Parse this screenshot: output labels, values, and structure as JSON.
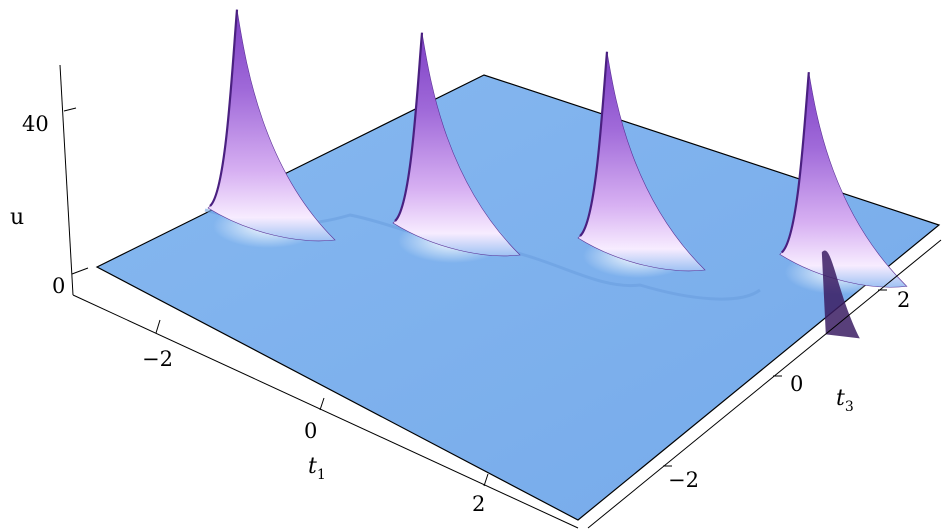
{
  "chart_data": {
    "type": "surface",
    "description_source": "3D surface plot of u over (t1, t3)",
    "peaks": [
      {
        "t1": -1.6,
        "t3": 2.8,
        "u": 48
      },
      {
        "t1": -0.5,
        "t3": 2.8,
        "u": 46
      },
      {
        "t1": 0.6,
        "t3": 2.8,
        "u": 45
      },
      {
        "t1": 1.8,
        "t3": 2.8,
        "u": 44
      }
    ],
    "baseline_u": 0,
    "axes": {
      "x": {
        "label": "t",
        "subscript": "1",
        "ticks": [
          "−2",
          "0",
          "2"
        ],
        "range": [
          -3,
          3
        ]
      },
      "y": {
        "label": "t",
        "subscript": "3",
        "ticks": [
          "−2",
          "0",
          "2"
        ],
        "range": [
          -3,
          3
        ]
      },
      "z": {
        "label": "u",
        "ticks": [
          "0",
          "40"
        ],
        "range": [
          0,
          50
        ]
      }
    },
    "colors": {
      "base": "#7fb2ee",
      "peak_top": "#8a4fcf",
      "peak_mid": "#c08be8",
      "peak_glow": "#f6e9ff"
    }
  }
}
